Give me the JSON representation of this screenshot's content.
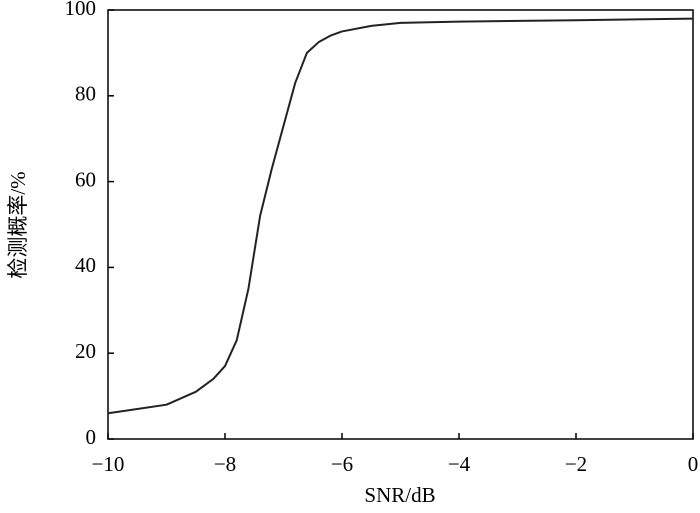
{
  "chart_data": {
    "type": "line",
    "x_label": "SNR/dB",
    "y_label": "检测概率/%",
    "x": [
      -10,
      -9.5,
      -9,
      -8.5,
      -8.2,
      -8,
      -7.8,
      -7.6,
      -7.4,
      -7.2,
      -7,
      -6.8,
      -6.6,
      -6.4,
      -6.2,
      -6,
      -5.5,
      -5,
      -4,
      -2,
      0
    ],
    "series": [
      {
        "color": "#222222",
        "values": [
          6,
          7,
          8,
          11,
          14,
          17,
          23,
          35,
          52,
          63,
          73,
          83,
          90,
          92.5,
          94,
          95,
          96.3,
          97,
          97.3,
          97.6,
          98
        ]
      }
    ],
    "xlim": [
      -10,
      0
    ],
    "xticks": [
      {
        "value": -10,
        "label": "−10"
      },
      {
        "value": -8,
        "label": "−8"
      },
      {
        "value": -6,
        "label": "−6"
      },
      {
        "value": -4,
        "label": "−4"
      },
      {
        "value": -2,
        "label": "−2"
      },
      0
    ],
    "ylim": [
      0,
      100
    ],
    "yticks": [
      0,
      20,
      40,
      60,
      80,
      100
    ],
    "grid": false
  }
}
